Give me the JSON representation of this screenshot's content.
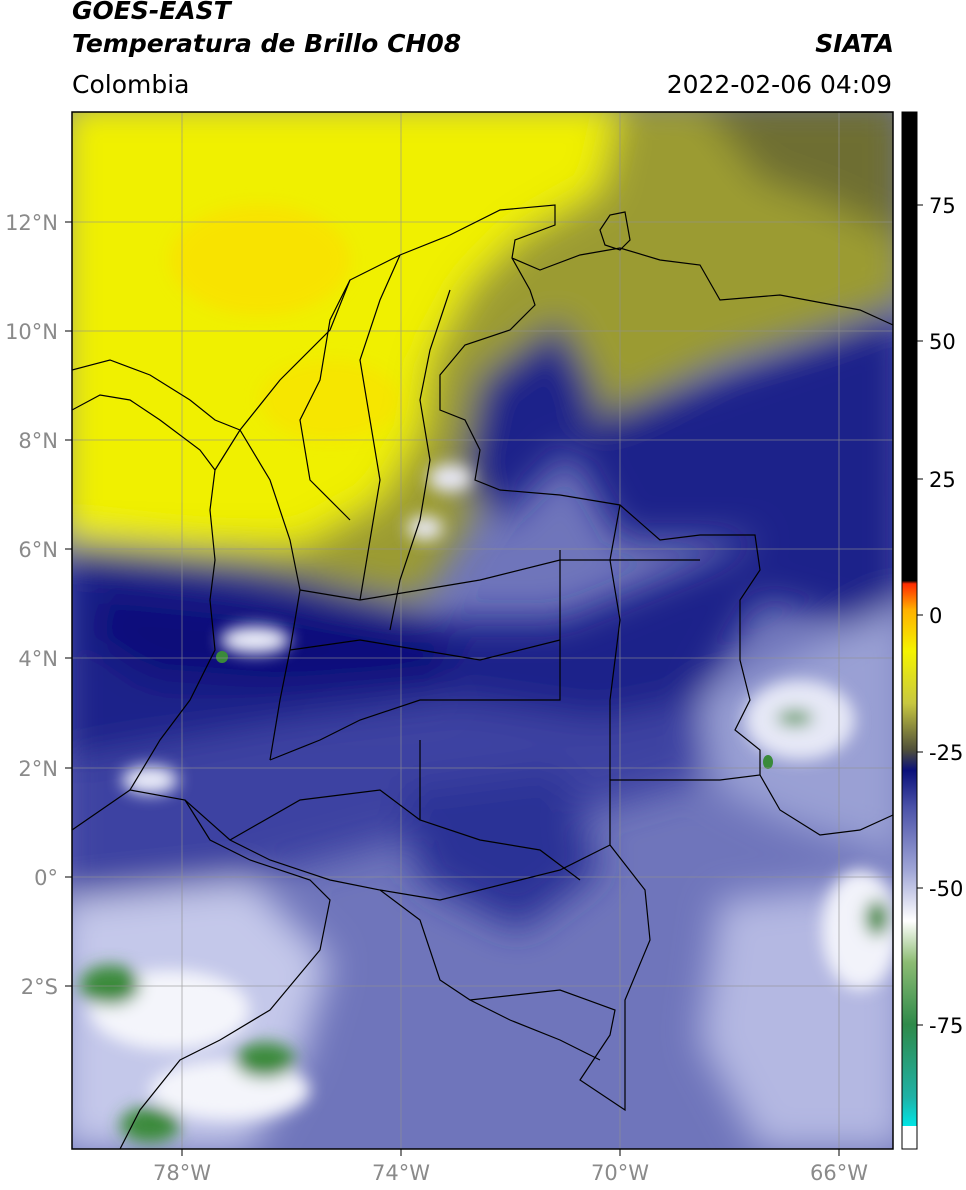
{
  "header": {
    "title_line1": "GOES-EAST",
    "title_line2": "Temperatura de Brillo CH08",
    "organization": "SIATA",
    "region": "Colombia",
    "datetime": "2022-02-06 04:09"
  },
  "map": {
    "lon_labels": [
      "78°W",
      "74°W",
      "70°W",
      "66°W"
    ],
    "lat_labels": [
      "12°N",
      "10°N",
      "8°N",
      "6°N",
      "4°N",
      "2°N",
      "0°",
      "2°S"
    ]
  },
  "colorbar": {
    "tick_labels": [
      "75",
      "50",
      "25",
      "0",
      "-25",
      "-50",
      "-75"
    ],
    "colors": {
      "black": "#000000",
      "red": "#ff2a00",
      "orange": "#ffb000",
      "yellow": "#f4f400",
      "olive": "#6b6b2a",
      "navy": "#0a107a",
      "slate": "#7f86c6",
      "white": "#ffffff",
      "green": "#2f8a2f",
      "teal": "#2aa88a",
      "cyan": "#00e5e5"
    }
  }
}
